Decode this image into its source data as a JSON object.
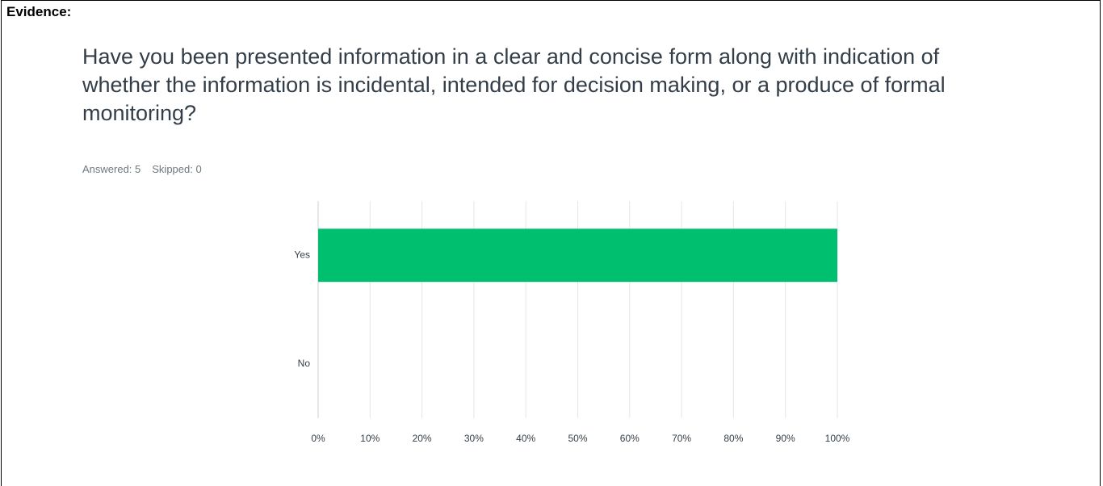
{
  "heading": "Evidence:",
  "chart_data": {
    "type": "hbar",
    "title": "Have you been presented information in a clear and concise form along with indication of whether the information is incidental, intended for decision making, or a produce of formal monitoring?",
    "stats": [
      "Answered: 5",
      "Skipped: 0"
    ],
    "categories": [
      "Yes",
      "No"
    ],
    "values": [
      100,
      0
    ],
    "color": "#00bf6f",
    "xlim": [
      0,
      100
    ],
    "xticks": [
      {
        "value": 0,
        "label": "0%"
      },
      {
        "value": 10,
        "label": "10%"
      },
      {
        "value": 20,
        "label": "20%"
      },
      {
        "value": 30,
        "label": "30%"
      },
      {
        "value": 40,
        "label": "40%"
      },
      {
        "value": 50,
        "label": "50%"
      },
      {
        "value": 60,
        "label": "60%"
      },
      {
        "value": 70,
        "label": "70%"
      },
      {
        "value": 80,
        "label": "80%"
      },
      {
        "value": 90,
        "label": "90%"
      },
      {
        "value": 100,
        "label": "100%"
      }
    ],
    "grid": true
  }
}
